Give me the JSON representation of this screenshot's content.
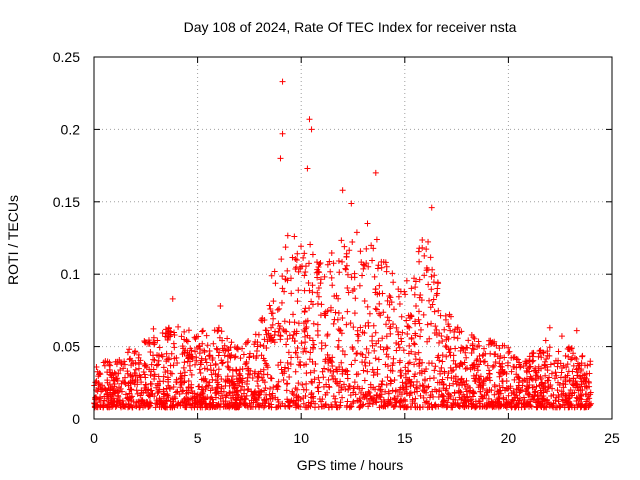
{
  "chart_data": {
    "type": "scatter",
    "title": "Day 108 of 2024, Rate Of TEC Index for receiver nsta",
    "xlabel": "GPS time / hours",
    "ylabel": "ROTI / TECUs",
    "xlim": [
      0,
      25
    ],
    "ylim": [
      0,
      0.25
    ],
    "xticks": [
      0,
      5,
      10,
      15,
      20,
      25
    ],
    "xtick_labels": [
      "0",
      "5",
      "10",
      "15",
      "20",
      "25"
    ],
    "yticks": [
      0,
      0.05,
      0.1,
      0.15,
      0.2,
      0.25
    ],
    "ytick_labels": [
      "0",
      "0.05",
      "0.1",
      "0.15",
      "0.2",
      "0.25"
    ],
    "grid": true,
    "marker": "+",
    "color": "#ff0000",
    "series": [
      {
        "name": "ROTI",
        "notable_points": [
          {
            "x": 9.1,
            "y": 0.233
          },
          {
            "x": 9.1,
            "y": 0.197
          },
          {
            "x": 10.4,
            "y": 0.207
          },
          {
            "x": 10.5,
            "y": 0.2
          },
          {
            "x": 9.0,
            "y": 0.18
          },
          {
            "x": 10.3,
            "y": 0.173
          },
          {
            "x": 13.6,
            "y": 0.17
          },
          {
            "x": 12.0,
            "y": 0.158
          },
          {
            "x": 16.3,
            "y": 0.146
          },
          {
            "x": 13.2,
            "y": 0.135
          },
          {
            "x": 3.8,
            "y": 0.083
          },
          {
            "x": 6.1,
            "y": 0.078
          },
          {
            "x": 22.0,
            "y": 0.063
          },
          {
            "x": 23.3,
            "y": 0.061
          }
        ],
        "hourly_profile": {
          "hours": [
            0,
            1,
            2,
            3,
            4,
            5,
            6,
            7,
            8,
            9,
            10,
            11,
            12,
            13,
            14,
            15,
            16,
            17,
            18,
            19,
            20,
            21,
            22,
            23,
            24
          ],
          "typical_max": [
            0.035,
            0.045,
            0.05,
            0.06,
            0.065,
            0.06,
            0.065,
            0.05,
            0.065,
            0.12,
            0.14,
            0.11,
            0.13,
            0.13,
            0.11,
            0.095,
            0.13,
            0.075,
            0.06,
            0.055,
            0.05,
            0.045,
            0.05,
            0.05,
            0.04
          ]
        }
      }
    ]
  }
}
